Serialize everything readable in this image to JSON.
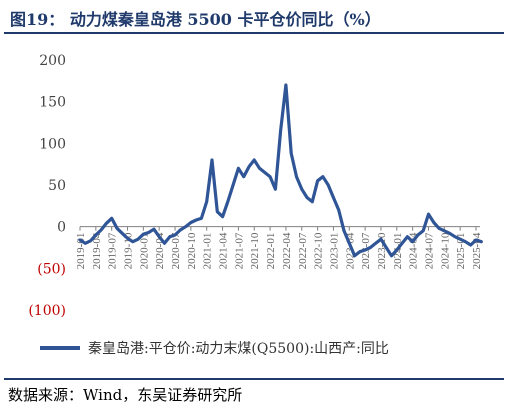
{
  "header": {
    "title": "图19：  动力煤秦皇岛港 5500 卡平仓价同比（%）"
  },
  "footer": {
    "source": "数据来源：Wind，东吴证券研究所"
  },
  "colors": {
    "line": "#2f5597",
    "axis": "#808080",
    "negative_tick": "#c00000",
    "title": "#1f3a6b"
  },
  "chart_data": {
    "type": "line",
    "title": "",
    "xlabel": "",
    "ylabel": "",
    "ylim": [
      -100,
      200
    ],
    "y_ticks": [
      {
        "value": 200,
        "label": "200"
      },
      {
        "value": 150,
        "label": "150"
      },
      {
        "value": 100,
        "label": "100"
      },
      {
        "value": 50,
        "label": "50"
      },
      {
        "value": 0,
        "label": "0"
      },
      {
        "value": -50,
        "label": "(50)"
      },
      {
        "value": -100,
        "label": "(100)"
      }
    ],
    "x_ticks": [
      "2019-01",
      "2019-04",
      "2019-07",
      "2019-10",
      "2020-01",
      "2020-04",
      "2020-07",
      "2020-10",
      "2021-01",
      "2021-04",
      "2021-07",
      "2021-10",
      "2022-01",
      "2022-04",
      "2022-07",
      "2022-10",
      "2023-01",
      "2023-04",
      "2023-07",
      "2023-10",
      "2024-01",
      "2024-04",
      "2024-07",
      "2024-10",
      "2025-01",
      "2025-04"
    ],
    "legend": {
      "position": "bottom",
      "entries": [
        "秦皇岛港:平仓价:动力末煤(Q5500):山西产:同比"
      ]
    },
    "grid": false,
    "series": [
      {
        "name": "秦皇岛港:平仓价:动力末煤(Q5500):山西产:同比",
        "points": [
          [
            "2019-01",
            -16
          ],
          [
            "2019-02",
            -20
          ],
          [
            "2019-03",
            -17
          ],
          [
            "2019-04",
            -10
          ],
          [
            "2019-05",
            -4
          ],
          [
            "2019-06",
            4
          ],
          [
            "2019-07",
            10
          ],
          [
            "2019-08",
            -2
          ],
          [
            "2019-09",
            -8
          ],
          [
            "2019-10",
            -14
          ],
          [
            "2019-11",
            -18
          ],
          [
            "2019-12",
            -15
          ],
          [
            "2020-01",
            -9
          ],
          [
            "2020-02",
            -7
          ],
          [
            "2020-03",
            -3
          ],
          [
            "2020-04",
            -12
          ],
          [
            "2020-05",
            -20
          ],
          [
            "2020-06",
            -12
          ],
          [
            "2020-07",
            -10
          ],
          [
            "2020-08",
            -4
          ],
          [
            "2020-09",
            0
          ],
          [
            "2020-10",
            5
          ],
          [
            "2020-11",
            8
          ],
          [
            "2020-12",
            10
          ],
          [
            "2021-01",
            30
          ],
          [
            "2021-02",
            80
          ],
          [
            "2021-03",
            18
          ],
          [
            "2021-04",
            12
          ],
          [
            "2021-05",
            30
          ],
          [
            "2021-06",
            50
          ],
          [
            "2021-07",
            70
          ],
          [
            "2021-08",
            60
          ],
          [
            "2021-09",
            72
          ],
          [
            "2021-10",
            80
          ],
          [
            "2021-11",
            70
          ],
          [
            "2021-12",
            65
          ],
          [
            "2022-01",
            60
          ],
          [
            "2022-02",
            45
          ],
          [
            "2022-03",
            115
          ],
          [
            "2022-04",
            170
          ],
          [
            "2022-05",
            88
          ],
          [
            "2022-06",
            60
          ],
          [
            "2022-07",
            45
          ],
          [
            "2022-08",
            35
          ],
          [
            "2022-09",
            30
          ],
          [
            "2022-10",
            55
          ],
          [
            "2022-11",
            60
          ],
          [
            "2022-12",
            50
          ],
          [
            "2023-01",
            35
          ],
          [
            "2023-02",
            20
          ],
          [
            "2023-03",
            -5
          ],
          [
            "2023-04",
            -20
          ],
          [
            "2023-05",
            -35
          ],
          [
            "2023-06",
            -30
          ],
          [
            "2023-07",
            -28
          ],
          [
            "2023-08",
            -25
          ],
          [
            "2023-09",
            -20
          ],
          [
            "2023-10",
            -15
          ],
          [
            "2023-11",
            -25
          ],
          [
            "2023-12",
            -35
          ],
          [
            "2024-01",
            -28
          ],
          [
            "2024-02",
            -20
          ],
          [
            "2024-03",
            -12
          ],
          [
            "2024-04",
            -18
          ],
          [
            "2024-05",
            -10
          ],
          [
            "2024-06",
            -5
          ],
          [
            "2024-07",
            15
          ],
          [
            "2024-08",
            5
          ],
          [
            "2024-09",
            -2
          ],
          [
            "2024-10",
            -5
          ],
          [
            "2024-11",
            -8
          ],
          [
            "2024-12",
            -12
          ],
          [
            "2025-01",
            -15
          ],
          [
            "2025-02",
            -18
          ],
          [
            "2025-03",
            -22
          ],
          [
            "2025-04",
            -16
          ],
          [
            "2025-05",
            -18
          ]
        ]
      }
    ]
  }
}
